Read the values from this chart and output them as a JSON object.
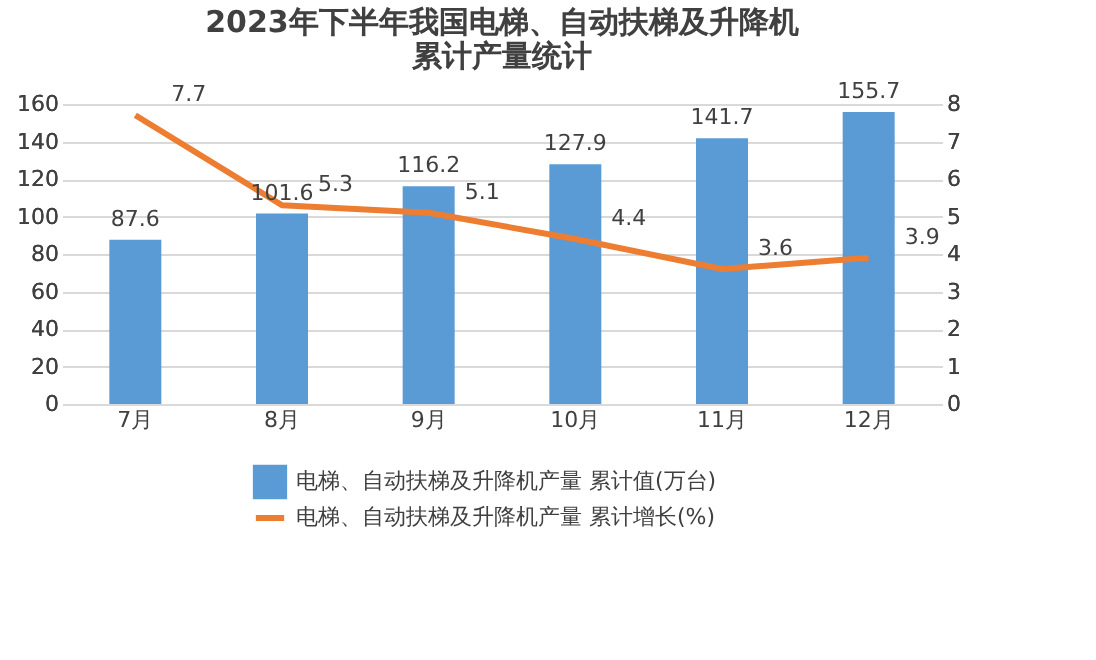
{
  "chart_data": {
    "type": "bar",
    "title": "2023年下半年我国电梯、自动扶梯及升降机累计产量统计",
    "categories": [
      "7月",
      "8月",
      "9月",
      "10月",
      "11月",
      "12月"
    ],
    "series": [
      {
        "name": "电梯、自动扶梯及升降机产量 累计值(万台)",
        "color": "#5b9bd5",
        "values": [
          87.6,
          101.6,
          116.2,
          127.9,
          141.7,
          155.7
        ]
      },
      {
        "name": "电梯、自动扶梯及升降机产量 累计增长(%)",
        "type": "line",
        "axis": "y2",
        "color": "#ed7d31",
        "values": [
          7.7,
          5.3,
          5.1,
          4.4,
          3.6,
          3.9
        ]
      }
    ],
    "ylim": [
      0,
      160
    ],
    "yticks": [
      0,
      20,
      40,
      60,
      80,
      100,
      120,
      140,
      160
    ],
    "y2lim": [
      0,
      8
    ],
    "y2ticks": [
      0,
      1,
      2,
      3,
      4,
      5,
      6,
      7,
      8
    ],
    "grid": "y",
    "legend": "bottom",
    "data_labels": true,
    "marker": "none",
    "line_style": "solid"
  }
}
